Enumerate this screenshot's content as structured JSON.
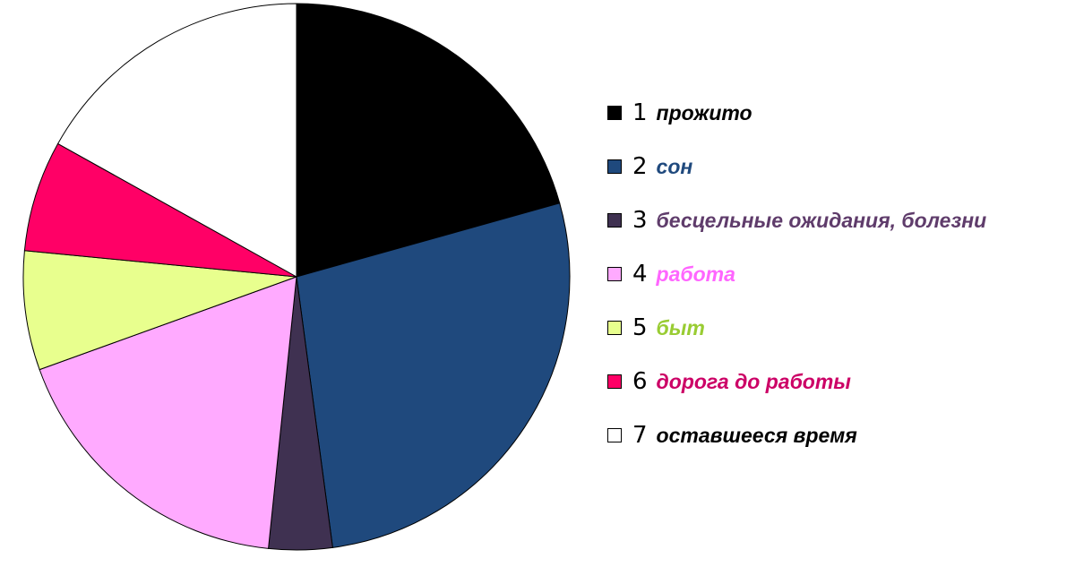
{
  "chart_data": {
    "type": "pie",
    "start_angle_deg": 0,
    "direction": "clockwise",
    "slices": [
      {
        "num": "1",
        "label": "прожито",
        "value": 22,
        "color": "#000000",
        "label_color": "#000000"
      },
      {
        "num": "2",
        "label": "сон",
        "value": 29,
        "color": "#1f497d",
        "label_color": "#1f497d"
      },
      {
        "num": "3",
        "label": "бесцельные ожидания, болезни",
        "value": 4,
        "color": "#3f3151",
        "label_color": "#5f3c6b"
      },
      {
        "num": "4",
        "label": "работа",
        "value": 19,
        "color": "#ffaaff",
        "label_color": "#ff66ff"
      },
      {
        "num": "5",
        "label": "быт",
        "value": 7.5,
        "color": "#e8ff8e",
        "label_color": "#99cc33"
      },
      {
        "num": "6",
        "label": "дорога до работы",
        "value": 7,
        "color": "#ff0066",
        "label_color": "#cc0066"
      },
      {
        "num": "7",
        "label": "оставшееся время",
        "value": 18,
        "color": "#ffffff",
        "label_color": "#000000"
      }
    ],
    "legend_position": "right"
  }
}
